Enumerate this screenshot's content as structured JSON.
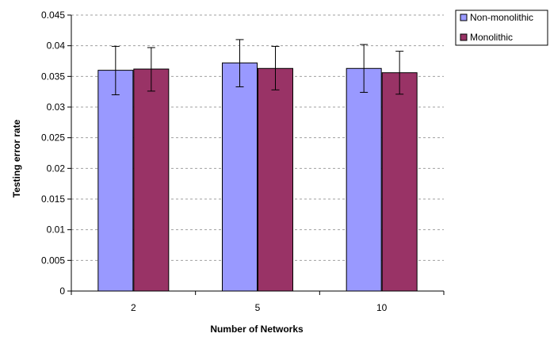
{
  "chart_data": {
    "type": "bar",
    "xlabel": "Number of Networks",
    "ylabel": "Testing error rate",
    "categories": [
      "2",
      "5",
      "10"
    ],
    "ylim": [
      0,
      0.045
    ],
    "ytick_step": 0.005,
    "yticks": [
      "0",
      "0.005",
      "0.01",
      "0.015",
      "0.02",
      "0.025",
      "0.03",
      "0.035",
      "0.04",
      "0.045"
    ],
    "grid": true,
    "legend_position": "top-right",
    "series": [
      {
        "name": "Non-monolithic",
        "color": "#9999ff",
        "values": [
          0.036,
          0.0372,
          0.0363
        ],
        "error_low": [
          0.032,
          0.0333,
          0.0324
        ],
        "error_high": [
          0.0399,
          0.041,
          0.0402
        ]
      },
      {
        "name": "Monolithic",
        "color": "#993366",
        "values": [
          0.0362,
          0.0363,
          0.0356
        ],
        "error_low": [
          0.0326,
          0.0328,
          0.0321
        ],
        "error_high": [
          0.0397,
          0.0399,
          0.0391
        ]
      }
    ]
  }
}
